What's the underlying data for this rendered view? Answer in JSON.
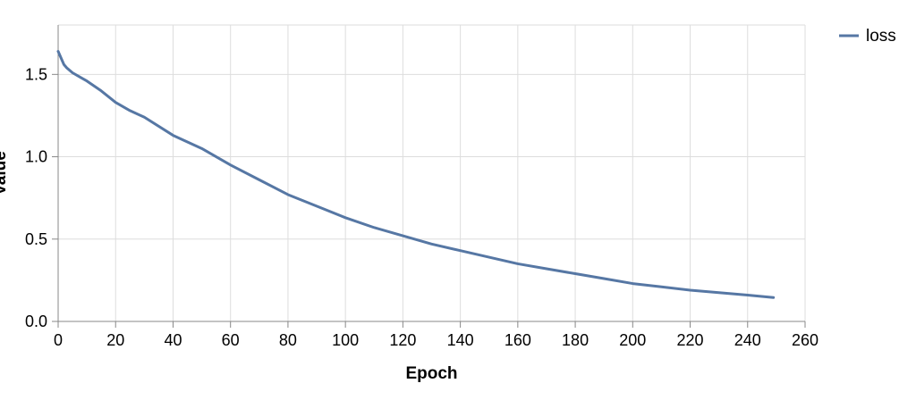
{
  "chart_data": {
    "type": "line",
    "xlabel": "Epoch",
    "ylabel": "Value",
    "xlim": [
      0,
      260
    ],
    "ylim": [
      0,
      1.8
    ],
    "x_ticks": [
      "0",
      "20",
      "40",
      "60",
      "80",
      "100",
      "120",
      "140",
      "160",
      "180",
      "200",
      "220",
      "240",
      "260"
    ],
    "y_ticks": [
      "0.0",
      "0.5",
      "1.0",
      "1.5"
    ],
    "grid": true,
    "legend_position": "top-right",
    "colors": {
      "series": "#5677a4",
      "grid": "#dddddd",
      "axis": "#888888"
    },
    "series": [
      {
        "name": "loss",
        "x": [
          0,
          1,
          2,
          3,
          5,
          8,
          10,
          15,
          20,
          25,
          30,
          40,
          50,
          60,
          70,
          80,
          90,
          100,
          110,
          120,
          130,
          140,
          150,
          160,
          170,
          180,
          190,
          200,
          210,
          220,
          230,
          240,
          249
        ],
        "values": [
          1.64,
          1.6,
          1.56,
          1.54,
          1.51,
          1.48,
          1.46,
          1.4,
          1.33,
          1.28,
          1.24,
          1.13,
          1.05,
          0.95,
          0.86,
          0.77,
          0.7,
          0.63,
          0.57,
          0.52,
          0.47,
          0.43,
          0.39,
          0.35,
          0.32,
          0.29,
          0.26,
          0.23,
          0.21,
          0.19,
          0.175,
          0.16,
          0.145
        ]
      }
    ]
  }
}
